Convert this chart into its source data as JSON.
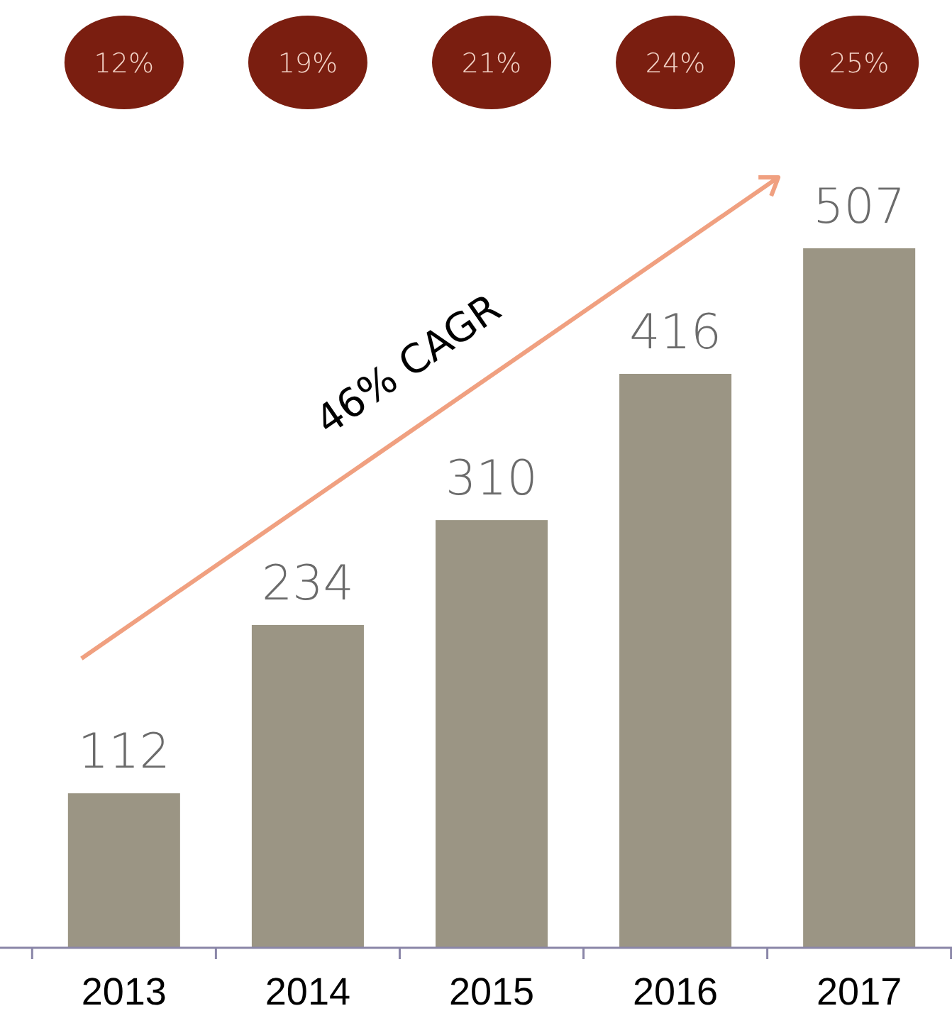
{
  "chart_data": {
    "type": "bar",
    "categories": [
      "2013",
      "2014",
      "2015",
      "2016",
      "2017"
    ],
    "values": [
      112,
      234,
      310,
      416,
      507
    ],
    "color": "#9b9584",
    "data_labels": true,
    "annotations": [
      "12%",
      "19%",
      "21%",
      "24%",
      "25%",
      "46% CAGR"
    ]
  }
}
